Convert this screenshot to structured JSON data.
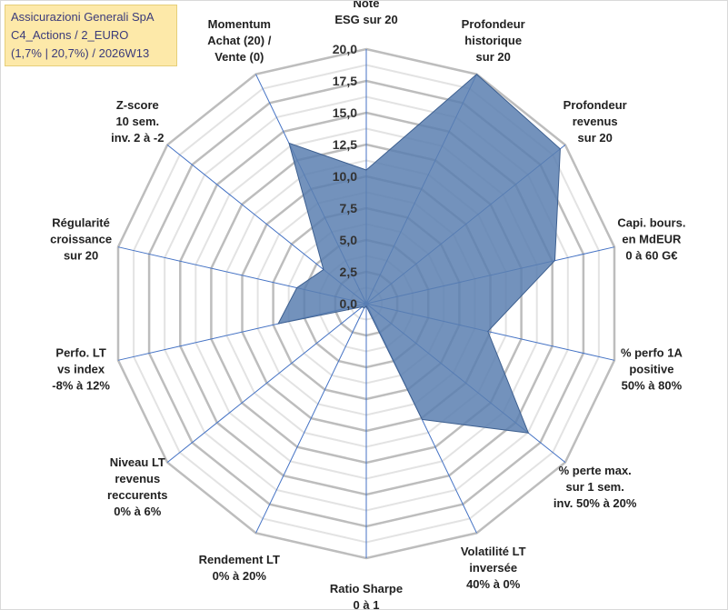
{
  "title": {
    "line1": "Assicurazioni Generali SpA",
    "line2": "C4_Actions / 2_EURO",
    "line3": "(1,7% | 20,7%) / 2026W13"
  },
  "colors": {
    "grid": "#c8c8c8",
    "spoke": "#4472c4",
    "fill": "#5b7fb0",
    "stroke": "#3d5f8f",
    "title_bg": "#fde9a9",
    "title_text": "#3b3b7a"
  },
  "chart_data": {
    "type": "radar",
    "rmin": 0,
    "rmax": 20,
    "tick_labels": [
      "0,0",
      "2,5",
      "5,0",
      "7,5",
      "10,0",
      "12,5",
      "15,0",
      "17,5",
      "20,0"
    ],
    "categories": [
      {
        "label": [
          "Note",
          "ESG sur 20"
        ],
        "value": 10.5
      },
      {
        "label": [
          "Profondeur",
          "historique",
          "sur 20"
        ],
        "value": 20
      },
      {
        "label": [
          "Profondeur",
          "revenus",
          "sur 20"
        ],
        "value": 19.5
      },
      {
        "label": [
          "Capi. bours.",
          "en MdEUR",
          "0 à 60 G€"
        ],
        "value": 15.2
      },
      {
        "label": [
          "% perfo 1A",
          "positive",
          "50% à 80%"
        ],
        "value": 9.8
      },
      {
        "label": [
          "% perte max.",
          "sur 1 sem.",
          "inv. 50% à 20%"
        ],
        "value": 16.3
      },
      {
        "label": [
          "Volatilité LT",
          "inversée",
          "40% à 0%"
        ],
        "value": 10.1
      },
      {
        "label": [
          "Ratio Sharpe",
          "0 à 1"
        ],
        "value": 0.2
      },
      {
        "label": [
          "Rendement LT",
          "0% à 20%"
        ],
        "value": 0.4
      },
      {
        "label": [
          "Niveau LT",
          "revenus",
          "reccurents",
          "0% à 6%"
        ],
        "value": 0.4
      },
      {
        "label": [
          "Perfo. LT",
          "vs index",
          "-8% à 12%"
        ],
        "value": 7.1
      },
      {
        "label": [
          "Régularité",
          "croissance",
          "sur 20"
        ],
        "value": 5.6
      },
      {
        "label": [
          "Z-score",
          "10 sem.",
          "inv. 2 à -2"
        ],
        "value": 4.3
      },
      {
        "label": [
          "Momentum",
          "Achat (20) /",
          "Vente (0)"
        ],
        "value": 14.0
      }
    ],
    "series": [
      {
        "name": "Assicurazioni Generali SpA"
      }
    ]
  }
}
